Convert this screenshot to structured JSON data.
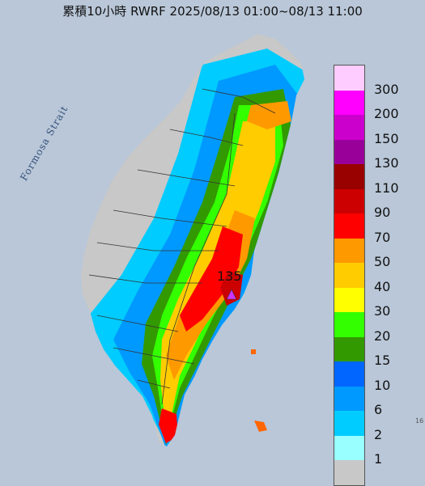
{
  "title": "累積10小時 RWRF 2025/08/13 01:00~08/13 11:00",
  "sea_label": "Formosa Strait",
  "peak": {
    "value_label": "135",
    "marker_color": "#cc33ff"
  },
  "legend": [
    {
      "label": "300",
      "color": "#ffccff"
    },
    {
      "label": "200",
      "color": "#ff00ff"
    },
    {
      "label": "150",
      "color": "#cc00cc"
    },
    {
      "label": "130",
      "color": "#990099"
    },
    {
      "label": "110",
      "color": "#990000"
    },
    {
      "label": "90",
      "color": "#cc0000"
    },
    {
      "label": "70",
      "color": "#ff0000"
    },
    {
      "label": "50",
      "color": "#ff9900"
    },
    {
      "label": "40",
      "color": "#ffcc00"
    },
    {
      "label": "30",
      "color": "#ffff00"
    },
    {
      "label": "20",
      "color": "#33ff00"
    },
    {
      "label": "15",
      "color": "#339900"
    },
    {
      "label": "10",
      "color": "#0066ff"
    },
    {
      "label": "6",
      "color": "#0099ff"
    },
    {
      "label": "2",
      "color": "#00ccff"
    },
    {
      "label": "1",
      "color": "#99ffff"
    },
    {
      "label": "",
      "color": "#c8c8c8"
    }
  ],
  "edge_text": "16"
}
